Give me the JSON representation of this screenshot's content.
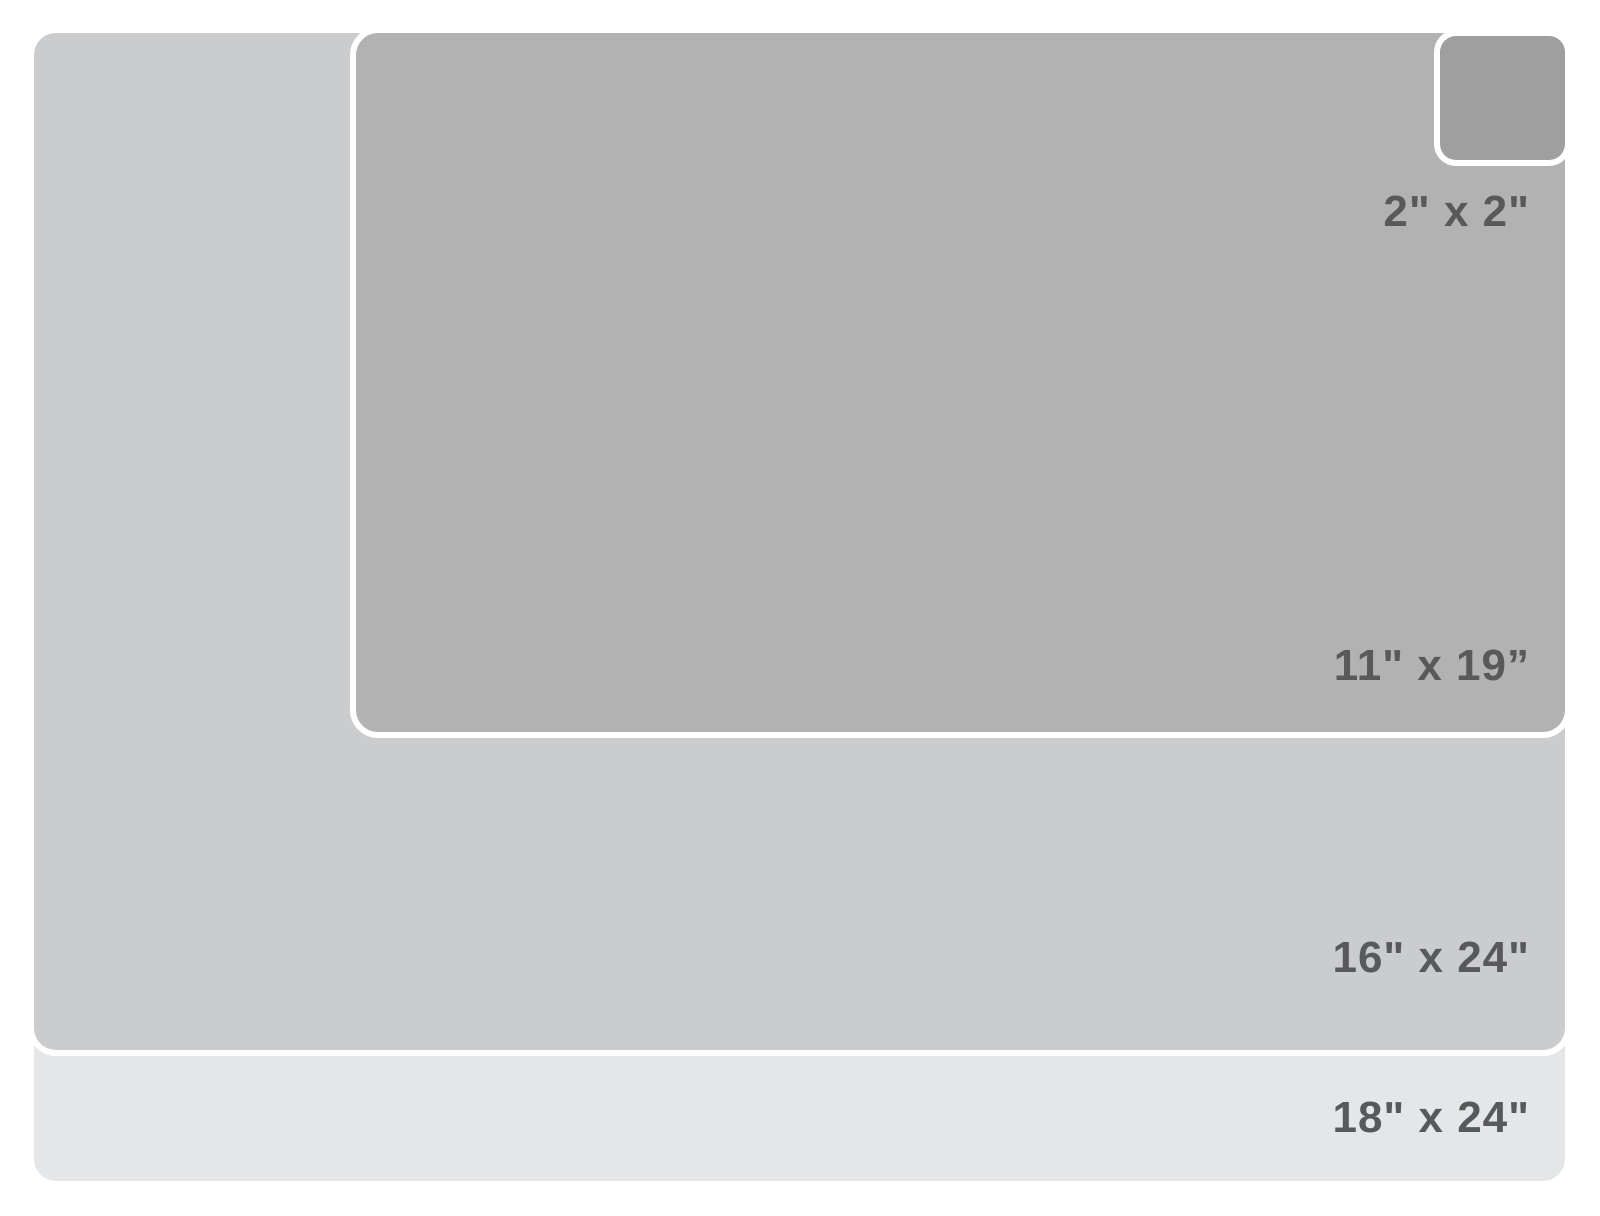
{
  "diagram": {
    "type": "size-comparison",
    "background": "#ffffff",
    "label_color": "#58595b",
    "stroke_color": "#ffffff",
    "sizes": [
      {
        "id": "18x24",
        "label": "18\" x 24\"",
        "width_in": 24,
        "height_in": 18,
        "color": "#e5e6e7"
      },
      {
        "id": "16x24",
        "label": "16\" x 24\"",
        "width_in": 24,
        "height_in": 16,
        "color": "#cbcccd"
      },
      {
        "id": "11x19",
        "label": "11\" x 19”",
        "width_in": 19,
        "height_in": 11,
        "color": "#b2b2b2"
      },
      {
        "id": "2x2",
        "label": "2\" x 2\"",
        "width_in": 2,
        "height_in": 2,
        "color": "#9f9f9f"
      }
    ]
  }
}
